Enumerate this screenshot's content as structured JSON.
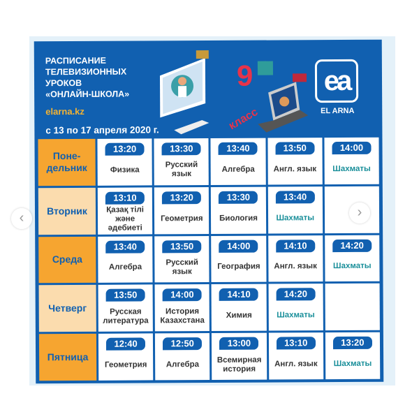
{
  "header": {
    "title_lines": [
      "РАСПИСАНИЕ",
      "ТЕЛЕВИЗИОННЫХ",
      "УРОКОВ",
      "«ОНЛАЙН-ШКОЛА»"
    ],
    "site": "elarna.kz",
    "dates": "с 13 по 17 апреля 2020 г.",
    "grade_number": "9",
    "grade_word": "класс",
    "logo_text": "EL ARNA",
    "logo_mark": "ea"
  },
  "colors": {
    "blue": "#1160b0",
    "orange": "#f6a530",
    "light_orange": "#fbdcae",
    "chess": "#1a8f9a"
  },
  "schedule": [
    {
      "day": "Поне-\nдельник",
      "lessons": [
        {
          "time": "13:20",
          "subject": "Физика"
        },
        {
          "time": "13:30",
          "subject": "Русский язык"
        },
        {
          "time": "13:40",
          "subject": "Алгебра"
        },
        {
          "time": "13:50",
          "subject": "Англ. язык"
        },
        {
          "time": "14:00",
          "subject": "Шахматы"
        }
      ]
    },
    {
      "day": "Вторник",
      "lessons": [
        {
          "time": "13:10",
          "subject": "Қазақ тілі және әдебиеті"
        },
        {
          "time": "13:20",
          "subject": "Геометрия"
        },
        {
          "time": "13:30",
          "subject": "Биология"
        },
        {
          "time": "13:40",
          "subject": "Шахматы"
        },
        {
          "time": "",
          "subject": ""
        }
      ]
    },
    {
      "day": "Среда",
      "lessons": [
        {
          "time": "13:40",
          "subject": "Алгебра"
        },
        {
          "time": "13:50",
          "subject": "Русский язык"
        },
        {
          "time": "14:00",
          "subject": "География"
        },
        {
          "time": "14:10",
          "subject": "Англ. язык"
        },
        {
          "time": "14:20",
          "subject": "Шахматы"
        }
      ]
    },
    {
      "day": "Четверг",
      "lessons": [
        {
          "time": "13:50",
          "subject": "Русская литература"
        },
        {
          "time": "14:00",
          "subject": "История Казахстана"
        },
        {
          "time": "14:10",
          "subject": "Химия"
        },
        {
          "time": "14:20",
          "subject": "Шахматы"
        },
        {
          "time": "",
          "subject": ""
        }
      ]
    },
    {
      "day": "Пятница",
      "lessons": [
        {
          "time": "12:40",
          "subject": "Геометрия"
        },
        {
          "time": "12:50",
          "subject": "Алгебра"
        },
        {
          "time": "13:00",
          "subject": "Всемирная история"
        },
        {
          "time": "13:10",
          "subject": "Англ. язык"
        },
        {
          "time": "13:20",
          "subject": "Шахматы"
        }
      ]
    }
  ],
  "carousel": {
    "prev_icon": "chevron-left-icon",
    "next_icon": "chevron-right-icon"
  }
}
